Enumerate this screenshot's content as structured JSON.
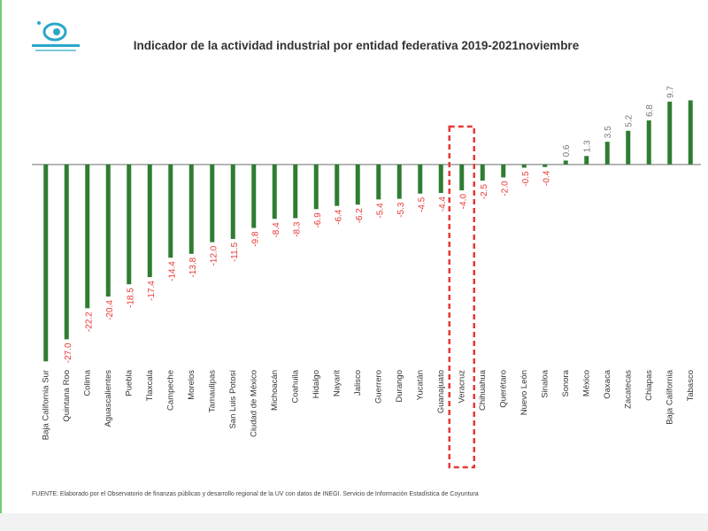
{
  "chart_data": {
    "type": "bar",
    "title": "Indicador de la actividad industrial por entidad federativa 2019-2021noviembre",
    "source": "FUENTE: Elaborado por el Observatorio de finanzas públicas y desarrollo regional de la UV con datos de INEGI. Servicio de Información Estadística de Coyuntura",
    "categories": [
      "Baja California Sur",
      "Quintana Roo",
      "Colima",
      "Aguascalientes",
      "Puebla",
      "Tlaxcala",
      "Campeche",
      "Morelos",
      "Tamaulipas",
      "San Luis Potosí",
      "Ciudad de México",
      "Michoacán",
      "Coahuila",
      "Hidalgo",
      "Nayarit",
      "Jalisco",
      "Guerrero",
      "Durango",
      "Yucatán",
      "Guanajuato",
      "Veracruz",
      "Chihuahua",
      "Querétaro",
      "Nuevo León",
      "Sinaloa",
      "Sonora",
      "México",
      "Oaxaca",
      "Zacatecas",
      "Chiapas",
      "Baja California",
      "Tabasco"
    ],
    "values": [
      -30.4,
      -27.0,
      -22.2,
      -20.4,
      -18.5,
      -17.4,
      -14.4,
      -13.8,
      -12.0,
      -11.5,
      -9.8,
      -8.4,
      -8.3,
      -6.9,
      -6.4,
      -6.2,
      -5.4,
      -5.3,
      -4.5,
      -4.4,
      -4.0,
      -2.5,
      -2.0,
      -0.5,
      -0.4,
      0.6,
      1.3,
      3.5,
      5.2,
      6.8,
      9.7,
      9.9
    ],
    "value_labels": [
      null,
      "-27.0",
      "-22.2",
      "-20.4",
      "-18.5",
      "-17.4",
      "-14.4",
      "-13.8",
      "-12.0",
      "-11.5",
      "-9.8",
      "-8.4",
      "-8.3",
      "-6.9",
      "-6.4",
      "-6.2",
      "-5.4",
      "-5.3",
      "-4.5",
      "-4.4",
      "-4.0",
      "-2.5",
      "-2.0",
      "-0.5",
      "-0.4",
      "0.6",
      "1.3",
      "3.5",
      "5.2",
      "6.8",
      "9.7",
      null
    ],
    "color": "#2e7d32",
    "negative_label_color": "#e53935",
    "positive_label_color": "#777777",
    "ylim": [
      -32,
      12
    ],
    "highlight": "Veracruz"
  }
}
